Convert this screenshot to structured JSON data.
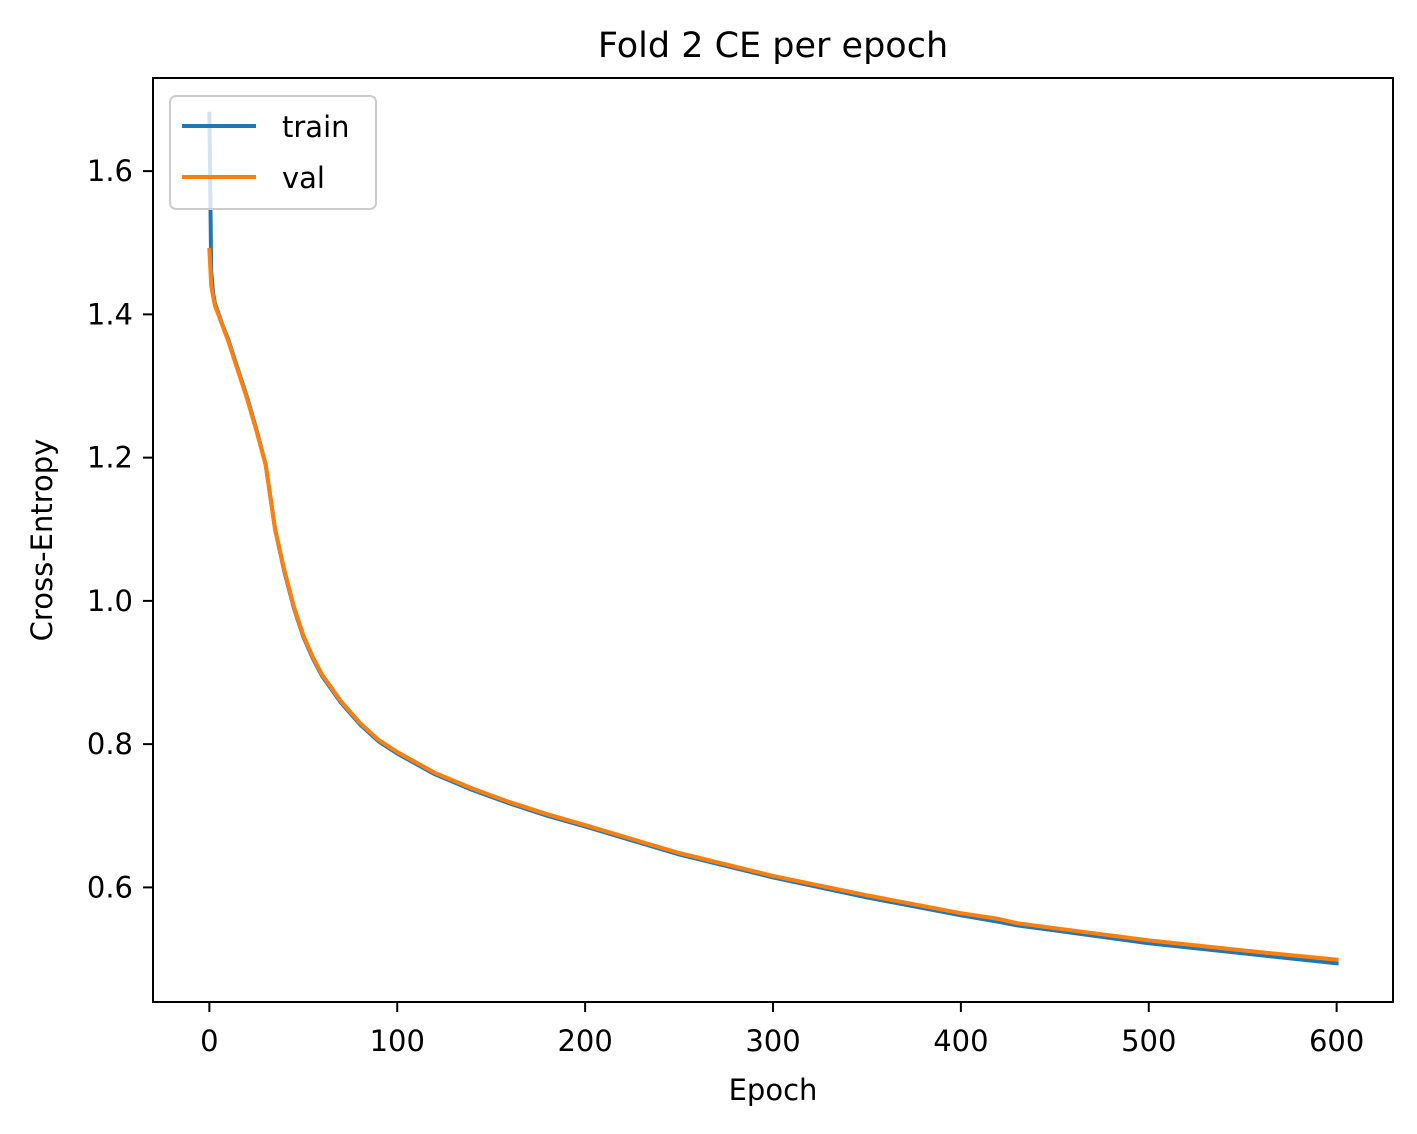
{
  "chart_data": {
    "type": "line",
    "title": "Fold 2 CE per epoch",
    "xlabel": "Epoch",
    "ylabel": "Cross-Entropy",
    "xlim": [
      -30,
      630
    ],
    "ylim": [
      0.44,
      1.73
    ],
    "xticks": [
      0,
      100,
      200,
      300,
      400,
      500,
      600
    ],
    "xtick_labels": [
      "0",
      "100",
      "200",
      "300",
      "400",
      "500",
      "600"
    ],
    "yticks": [
      0.6,
      0.8,
      1.0,
      1.2,
      1.4,
      1.6
    ],
    "ytick_labels": [
      "0.6",
      "0.8",
      "1.0",
      "1.2",
      "1.4",
      "1.6"
    ],
    "grid": false,
    "legend_position": "upper-left",
    "series": [
      {
        "name": "train",
        "color": "#1f77b4",
        "x": [
          0,
          1,
          2,
          3,
          5,
          7,
          10,
          15,
          20,
          25,
          30,
          35,
          40,
          45,
          50,
          55,
          60,
          70,
          80,
          90,
          100,
          120,
          140,
          160,
          180,
          200,
          250,
          300,
          350,
          400,
          420,
          430,
          450,
          500,
          550,
          600
        ],
        "y": [
          1.68,
          1.46,
          1.43,
          1.415,
          1.4,
          1.385,
          1.365,
          1.325,
          1.285,
          1.24,
          1.19,
          1.1,
          1.04,
          0.99,
          0.95,
          0.92,
          0.895,
          0.858,
          0.828,
          0.804,
          0.787,
          0.758,
          0.736,
          0.717,
          0.7,
          0.685,
          0.646,
          0.614,
          0.586,
          0.561,
          0.552,
          0.547,
          0.54,
          0.522,
          0.508,
          0.494
        ]
      },
      {
        "name": "val",
        "color": "#ff7f0e",
        "x": [
          0,
          1,
          2,
          3,
          5,
          7,
          10,
          15,
          20,
          25,
          30,
          35,
          40,
          45,
          50,
          55,
          60,
          70,
          80,
          90,
          100,
          120,
          140,
          160,
          180,
          200,
          250,
          300,
          350,
          400,
          420,
          430,
          450,
          500,
          550,
          600
        ],
        "y": [
          1.49,
          1.44,
          1.425,
          1.412,
          1.398,
          1.384,
          1.363,
          1.323,
          1.283,
          1.238,
          1.19,
          1.1,
          1.042,
          0.992,
          0.952,
          0.922,
          0.897,
          0.86,
          0.83,
          0.806,
          0.789,
          0.76,
          0.738,
          0.719,
          0.702,
          0.687,
          0.648,
          0.616,
          0.589,
          0.564,
          0.556,
          0.55,
          0.543,
          0.526,
          0.512,
          0.499
        ]
      }
    ]
  }
}
